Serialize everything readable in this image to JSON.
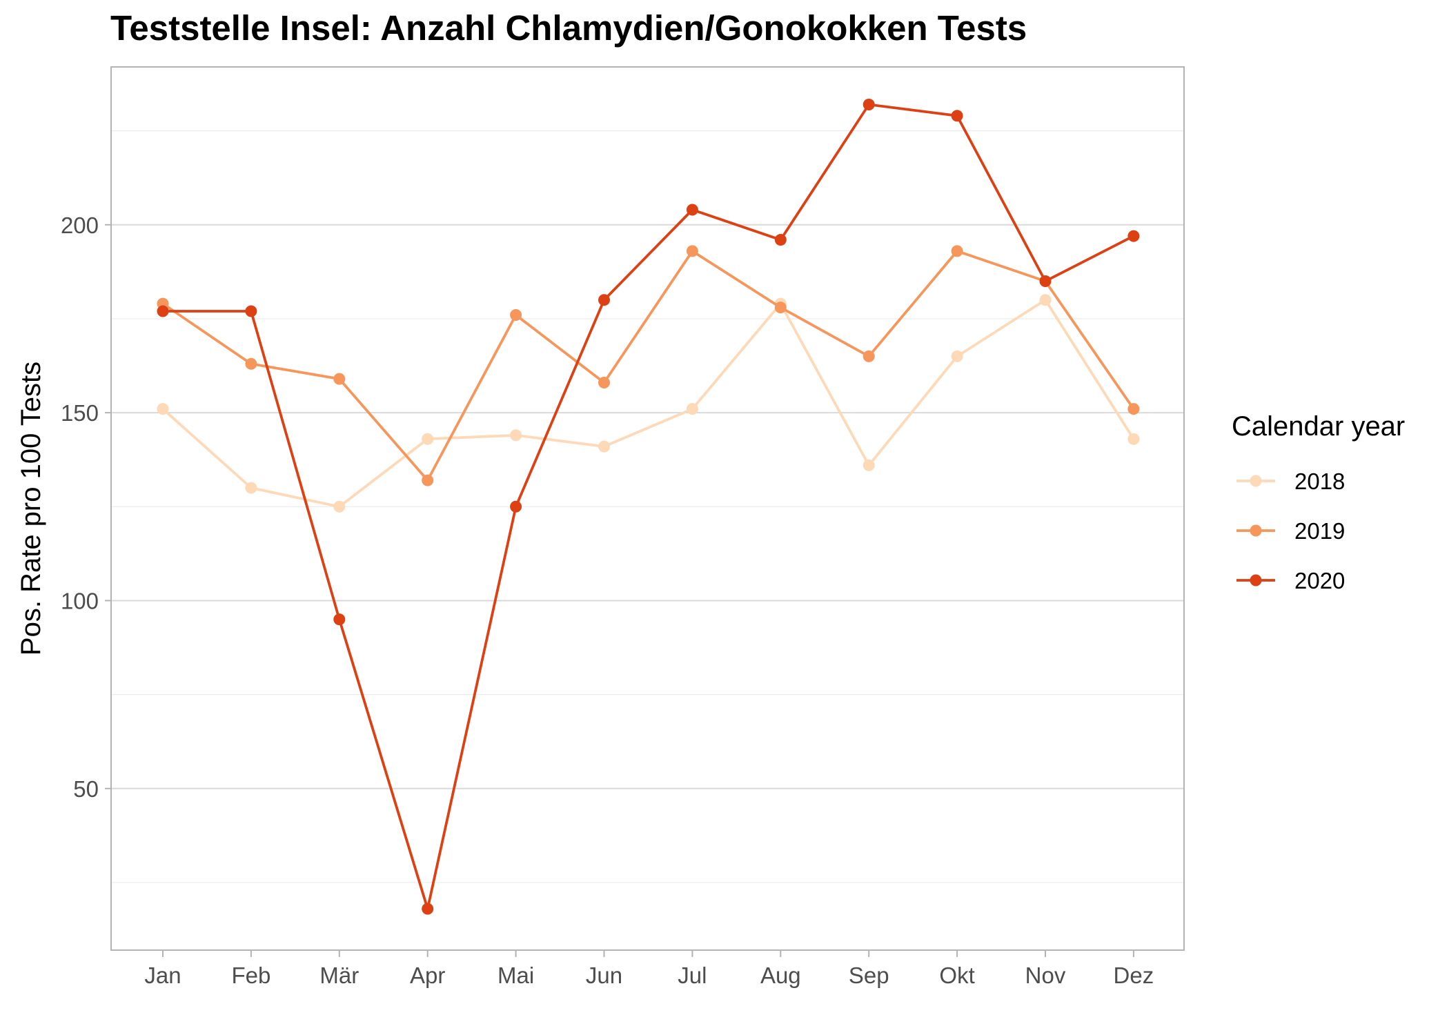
{
  "chart_data": {
    "type": "line",
    "title": "Teststelle Insel: Anzahl Chlamydien/Gonokokken Tests",
    "xlabel": "",
    "ylabel": "Pos. Rate pro 100 Tests",
    "categories": [
      "Jan",
      "Feb",
      "Mär",
      "Apr",
      "Mai",
      "Jun",
      "Jul",
      "Aug",
      "Sep",
      "Okt",
      "Nov",
      "Dez"
    ],
    "yticks": [
      50,
      100,
      150,
      200
    ],
    "ylim": [
      7,
      242
    ],
    "grid": true,
    "legend": {
      "title": "Calendar year",
      "position": "right"
    },
    "series": [
      {
        "name": "2018",
        "color": "#fdd9b8",
        "values": [
          151,
          130,
          125,
          143,
          144,
          141,
          151,
          179,
          136,
          165,
          180,
          143
        ]
      },
      {
        "name": "2019",
        "color": "#f6965a",
        "values": [
          179,
          163,
          159,
          132,
          176,
          158,
          193,
          178,
          165,
          193,
          185,
          151
        ]
      },
      {
        "name": "2020",
        "color": "#dd4012",
        "values": [
          177,
          177,
          95,
          18,
          125,
          180,
          204,
          196,
          232,
          229,
          185,
          197
        ]
      }
    ]
  }
}
